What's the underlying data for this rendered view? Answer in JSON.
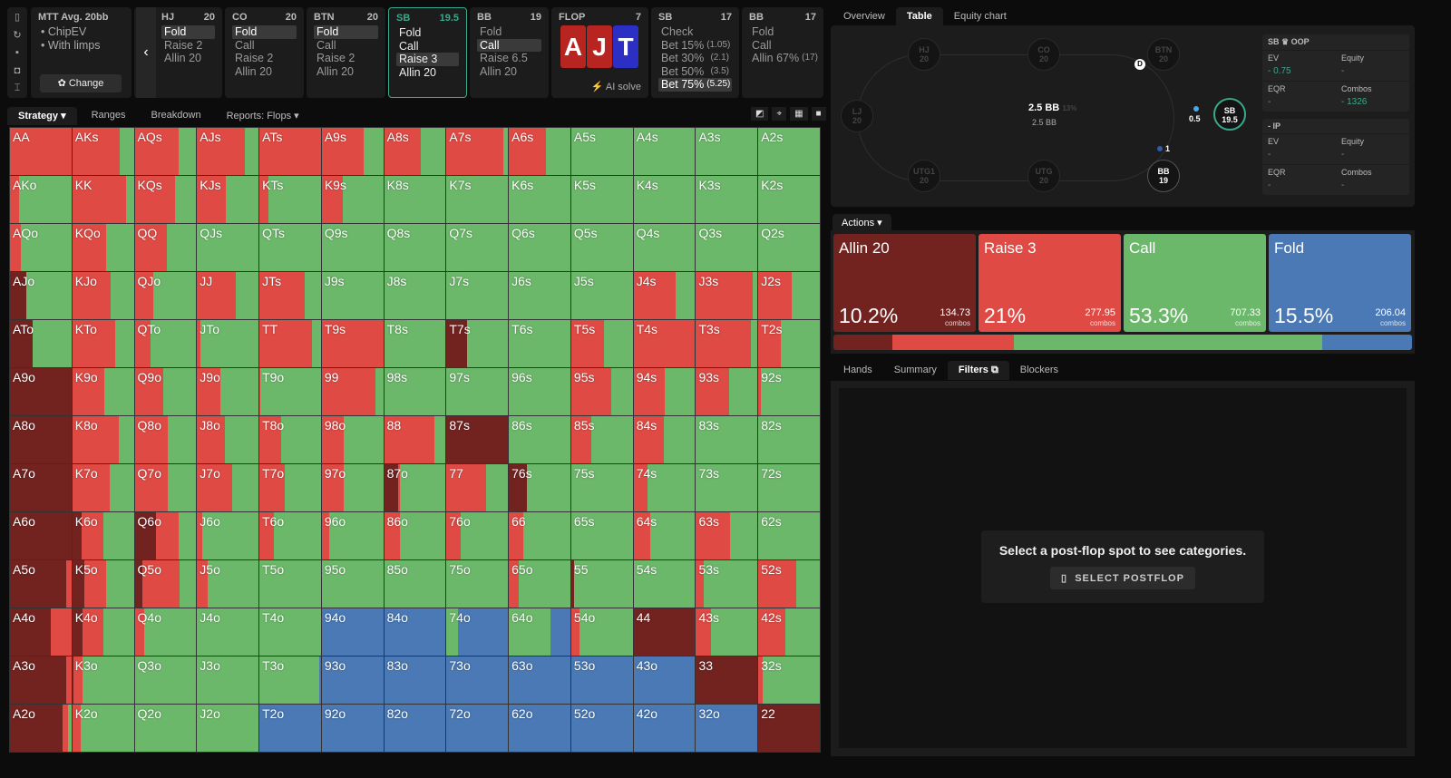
{
  "colors": {
    "allin": "#722320",
    "raise": "#e04a44",
    "call": "#6cb86a",
    "fold": "#4a79b5",
    "accent": "#3aa88a"
  },
  "sidebar_icons": [
    "bookmark-icon",
    "reset-icon",
    "save-icon",
    "gamepad-icon",
    "expand-icon"
  ],
  "game": {
    "title": "MTT  Avg. 20bb",
    "opts": [
      "• ChipEV",
      "• With limps"
    ],
    "change": "Change"
  },
  "positions": [
    {
      "name": "HJ",
      "stack": "20",
      "options": [
        "Fold",
        "Raise 2",
        "Allin 20"
      ],
      "selected": 0
    },
    {
      "name": "CO",
      "stack": "20",
      "options": [
        "Fold",
        "Call",
        "Raise 2",
        "Allin 20"
      ],
      "selected": 0
    },
    {
      "name": "BTN",
      "stack": "20",
      "options": [
        "Fold",
        "Call",
        "Raise 2",
        "Allin 20"
      ],
      "selected": 0
    },
    {
      "name": "SB",
      "stack": "19.5",
      "options": [
        "Fold",
        "Call",
        "Raise 3",
        "Allin 20"
      ],
      "selected": 2
    },
    {
      "name": "BB",
      "stack": "19",
      "options": [
        "Fold",
        "Call",
        "Raise 6.5",
        "Allin 20"
      ],
      "selected": 1
    }
  ],
  "flop": {
    "label": "FLOP",
    "count": "7",
    "cards": [
      "A",
      "J",
      "T"
    ],
    "ai": "AI solve"
  },
  "sb_flop": {
    "name": "SB",
    "stack": "17",
    "options": [
      [
        "Check",
        ""
      ],
      [
        "Bet 15%",
        "(1.05)"
      ],
      [
        "Bet 30%",
        "(2.1)"
      ],
      [
        "Bet 50%",
        "(3.5)"
      ],
      [
        "Bet 75%",
        "(5.25)"
      ]
    ]
  },
  "bb_flop": {
    "name": "BB",
    "stack": "17",
    "options": [
      [
        "Fold",
        ""
      ],
      [
        "Call",
        ""
      ],
      [
        "Allin 67%",
        "(17)"
      ]
    ]
  },
  "tabs": [
    "Strategy",
    "Ranges",
    "Breakdown",
    "Reports: Flops"
  ],
  "right_tabs": [
    "Overview",
    "Table",
    "Equity chart"
  ],
  "table": {
    "seats": [
      {
        "n": "HJ",
        "s": "20"
      },
      {
        "n": "CO",
        "s": "20"
      },
      {
        "n": "BTN",
        "s": "20"
      },
      {
        "n": "LJ",
        "s": "20"
      },
      {
        "n": "SB",
        "s": "19.5"
      },
      {
        "n": "UTG1",
        "s": "20"
      },
      {
        "n": "UTG",
        "s": "20"
      },
      {
        "n": "BB",
        "s": "19"
      }
    ],
    "pot": "2.5 BB",
    "pot_pct": "13%",
    "pot_sub": "2.5 BB",
    "sb_bet": "0.5",
    "bb_bet": "1",
    "dealer": "D",
    "oop": {
      "title": "SB ♛ OOP",
      "ev_label": "EV",
      "ev": "- 0.75",
      "eq_label": "Equity",
      "eq": "-",
      "eqr_label": "EQR",
      "eqr": "-",
      "combos_label": "Combos",
      "combos": "- 1326"
    },
    "ip": {
      "title": "- IP",
      "ev_label": "EV",
      "ev": "-",
      "eq_label": "Equity",
      "eq": "-",
      "eqr_label": "EQR",
      "eqr": "-",
      "combos_label": "Combos",
      "combos": "-"
    }
  },
  "actions_label": "Actions",
  "actions": [
    {
      "name": "Allin 20",
      "pct": "10.2%",
      "combos": "134.73",
      "unit": "combos",
      "share": 10.2
    },
    {
      "name": "Raise 3",
      "pct": "21%",
      "combos": "277.95",
      "unit": "combos",
      "share": 21
    },
    {
      "name": "Call",
      "pct": "53.3%",
      "combos": "707.33",
      "unit": "combos",
      "share": 53.3
    },
    {
      "name": "Fold",
      "pct": "15.5%",
      "combos": "206.04",
      "unit": "combos",
      "share": 15.5
    }
  ],
  "bottom_tabs": [
    "Hands",
    "Summary",
    "Filters",
    "Blockers"
  ],
  "filters": {
    "message": "Select a post-flop spot to see categories.",
    "button": "SELECT POSTFLOP"
  },
  "grid": [
    [
      [
        "AA",
        0,
        100,
        0,
        0
      ],
      [
        "AKs",
        0,
        77,
        23,
        0
      ],
      [
        "AQs",
        0,
        72,
        28,
        0
      ],
      [
        "AJs",
        0,
        78,
        22,
        0
      ],
      [
        "ATs",
        0,
        100,
        0,
        0
      ],
      [
        "A9s",
        0,
        68,
        32,
        0
      ],
      [
        "A8s",
        0,
        60,
        40,
        0
      ],
      [
        "A7s",
        0,
        92,
        8,
        0
      ],
      [
        "A6s",
        0,
        60,
        40,
        0
      ],
      [
        "A5s",
        0,
        0,
        100,
        0
      ],
      [
        "A4s",
        0,
        0,
        100,
        0
      ],
      [
        "A3s",
        0,
        0,
        100,
        0
      ],
      [
        "A2s",
        0,
        0,
        100,
        0
      ]
    ],
    [
      [
        "AKo",
        0,
        15,
        85,
        0
      ],
      [
        "KK",
        0,
        88,
        12,
        0
      ],
      [
        "KQs",
        0,
        66,
        34,
        0
      ],
      [
        "KJs",
        0,
        47,
        53,
        0
      ],
      [
        "KTs",
        0,
        15,
        85,
        0
      ],
      [
        "K9s",
        0,
        34,
        66,
        0
      ],
      [
        "K8s",
        0,
        0,
        100,
        0
      ],
      [
        "K7s",
        0,
        0,
        100,
        0
      ],
      [
        "K6s",
        0,
        0,
        100,
        0
      ],
      [
        "K5s",
        0,
        0,
        100,
        0
      ],
      [
        "K4s",
        0,
        0,
        100,
        0
      ],
      [
        "K3s",
        0,
        0,
        100,
        0
      ],
      [
        "K2s",
        0,
        0,
        100,
        0
      ]
    ],
    [
      [
        "AQo",
        0,
        17,
        83,
        0
      ],
      [
        "KQo",
        0,
        55,
        45,
        0
      ],
      [
        "QQ",
        0,
        53,
        47,
        0
      ],
      [
        "QJs",
        0,
        0,
        100,
        0
      ],
      [
        "QTs",
        0,
        0,
        100,
        0
      ],
      [
        "Q9s",
        0,
        0,
        100,
        0
      ],
      [
        "Q8s",
        0,
        0,
        100,
        0
      ],
      [
        "Q7s",
        0,
        0,
        100,
        0
      ],
      [
        "Q6s",
        0,
        0,
        100,
        0
      ],
      [
        "Q5s",
        0,
        0,
        100,
        0
      ],
      [
        "Q4s",
        0,
        0,
        100,
        0
      ],
      [
        "Q3s",
        0,
        0,
        100,
        0
      ],
      [
        "Q2s",
        0,
        0,
        100,
        0
      ]
    ],
    [
      [
        "AJo",
        27,
        0,
        73,
        0
      ],
      [
        "KJo",
        0,
        63,
        37,
        0
      ],
      [
        "QJo",
        0,
        30,
        70,
        0
      ],
      [
        "JJ",
        0,
        63,
        37,
        0
      ],
      [
        "JTs",
        0,
        74,
        26,
        0
      ],
      [
        "J9s",
        0,
        0,
        100,
        0
      ],
      [
        "J8s",
        0,
        0,
        100,
        0
      ],
      [
        "J7s",
        0,
        0,
        100,
        0
      ],
      [
        "J6s",
        0,
        0,
        100,
        0
      ],
      [
        "J5s",
        0,
        0,
        100,
        0
      ],
      [
        "J4s",
        0,
        68,
        32,
        0
      ],
      [
        "J3s",
        0,
        92,
        8,
        0
      ],
      [
        "J2s",
        0,
        55,
        45,
        0
      ]
    ],
    [
      [
        "ATo",
        37,
        0,
        63,
        0
      ],
      [
        "KTo",
        0,
        69,
        31,
        0
      ],
      [
        "QTo",
        0,
        26,
        74,
        0
      ],
      [
        "JTo",
        0,
        6,
        94,
        0
      ],
      [
        "TT",
        0,
        85,
        15,
        0
      ],
      [
        "T9s",
        0,
        100,
        0,
        0
      ],
      [
        "T8s",
        0,
        0,
        100,
        0
      ],
      [
        "T7s",
        33,
        0,
        67,
        0
      ],
      [
        "T6s",
        0,
        0,
        100,
        0
      ],
      [
        "T5s",
        0,
        53,
        47,
        0
      ],
      [
        "T4s",
        0,
        100,
        0,
        0
      ],
      [
        "T3s",
        0,
        90,
        10,
        0
      ],
      [
        "T2s",
        0,
        37,
        63,
        0
      ]
    ],
    [
      [
        "A9o",
        100,
        0,
        0,
        0
      ],
      [
        "K9o",
        0,
        52,
        48,
        0
      ],
      [
        "Q9o",
        0,
        47,
        53,
        0
      ],
      [
        "J9o",
        0,
        38,
        62,
        0
      ],
      [
        "T9o",
        0,
        2,
        98,
        0
      ],
      [
        "99",
        0,
        88,
        12,
        0
      ],
      [
        "98s",
        0,
        0,
        100,
        0
      ],
      [
        "97s",
        0,
        0,
        100,
        0
      ],
      [
        "96s",
        0,
        0,
        100,
        0
      ],
      [
        "95s",
        0,
        65,
        35,
        0
      ],
      [
        "94s",
        0,
        51,
        49,
        0
      ],
      [
        "93s",
        0,
        54,
        46,
        0
      ],
      [
        "92s",
        0,
        4,
        96,
        0
      ]
    ],
    [
      [
        "A8o",
        100,
        0,
        0,
        0
      ],
      [
        "K8o",
        0,
        76,
        24,
        0
      ],
      [
        "Q8o",
        0,
        54,
        46,
        0
      ],
      [
        "J8o",
        0,
        45,
        55,
        0
      ],
      [
        "T8o",
        0,
        35,
        65,
        0
      ],
      [
        "98o",
        0,
        36,
        64,
        0
      ],
      [
        "88",
        0,
        82,
        18,
        0
      ],
      [
        "87s",
        100,
        0,
        0,
        0
      ],
      [
        "86s",
        0,
        0,
        100,
        0
      ],
      [
        "85s",
        0,
        32,
        68,
        0
      ],
      [
        "84s",
        0,
        49,
        51,
        0
      ],
      [
        "83s",
        0,
        0,
        100,
        0
      ],
      [
        "82s",
        0,
        0,
        100,
        0
      ]
    ],
    [
      [
        "A7o",
        100,
        0,
        0,
        0
      ],
      [
        "K7o",
        0,
        61,
        39,
        0
      ],
      [
        "Q7o",
        0,
        54,
        46,
        0
      ],
      [
        "J7o",
        0,
        57,
        43,
        0
      ],
      [
        "T7o",
        0,
        41,
        59,
        0
      ],
      [
        "97o",
        0,
        35,
        65,
        0
      ],
      [
        "87o",
        23,
        3,
        74,
        0
      ],
      [
        "77",
        0,
        64,
        36,
        0
      ],
      [
        "76s",
        30,
        0,
        70,
        0
      ],
      [
        "75s",
        0,
        0,
        100,
        0
      ],
      [
        "74s",
        0,
        23,
        77,
        0
      ],
      [
        "73s",
        0,
        0,
        100,
        0
      ],
      [
        "72s",
        0,
        0,
        100,
        0
      ]
    ],
    [
      [
        "A6o",
        100,
        0,
        0,
        0
      ],
      [
        "K6o",
        15,
        35,
        50,
        0
      ],
      [
        "Q6o",
        35,
        37,
        28,
        0
      ],
      [
        "J6o",
        0,
        8,
        92,
        0
      ],
      [
        "T6o",
        0,
        24,
        76,
        0
      ],
      [
        "96o",
        0,
        12,
        88,
        0
      ],
      [
        "86o",
        0,
        26,
        74,
        0
      ],
      [
        "76o",
        0,
        23,
        77,
        0
      ],
      [
        "66",
        0,
        23,
        77,
        0
      ],
      [
        "65s",
        0,
        0,
        100,
        0
      ],
      [
        "64s",
        0,
        27,
        73,
        0
      ],
      [
        "63s",
        0,
        55,
        45,
        0
      ],
      [
        "62s",
        0,
        0,
        100,
        0
      ]
    ],
    [
      [
        "A5o",
        92,
        8,
        0,
        0
      ],
      [
        "K5o",
        20,
        35,
        45,
        0
      ],
      [
        "Q5o",
        13,
        60,
        27,
        0
      ],
      [
        "J5o",
        0,
        17,
        83,
        0
      ],
      [
        "T5o",
        0,
        0,
        100,
        0
      ],
      [
        "95o",
        0,
        0,
        100,
        0
      ],
      [
        "85o",
        0,
        0,
        100,
        0
      ],
      [
        "75o",
        0,
        0,
        100,
        0
      ],
      [
        "65o",
        0,
        16,
        84,
        0
      ],
      [
        "55",
        4,
        0,
        96,
        0
      ],
      [
        "54s",
        0,
        0,
        100,
        0
      ],
      [
        "53s",
        0,
        12,
        88,
        0
      ],
      [
        "52s",
        0,
        61,
        39,
        0
      ]
    ],
    [
      [
        "A4o",
        66,
        34,
        0,
        0
      ],
      [
        "K4o",
        17,
        33,
        50,
        0
      ],
      [
        "Q4o",
        0,
        16,
        84,
        0
      ],
      [
        "J4o",
        0,
        0,
        100,
        0
      ],
      [
        "T4o",
        0,
        0,
        100,
        0
      ],
      [
        "94o",
        0,
        0,
        0,
        100
      ],
      [
        "84o",
        0,
        0,
        0,
        100
      ],
      [
        "74o",
        0,
        0,
        19,
        81
      ],
      [
        "64o",
        0,
        0,
        68,
        32
      ],
      [
        "54o",
        0,
        13,
        87,
        0
      ],
      [
        "44",
        100,
        0,
        0,
        0
      ],
      [
        "43s",
        0,
        25,
        75,
        0
      ],
      [
        "42s",
        0,
        44,
        56,
        0
      ]
    ],
    [
      [
        "A3o",
        91,
        9,
        0,
        0
      ],
      [
        "K3o",
        2,
        14,
        84,
        0
      ],
      [
        "Q3o",
        0,
        0,
        100,
        0
      ],
      [
        "J3o",
        0,
        0,
        100,
        0
      ],
      [
        "T3o",
        0,
        0,
        97,
        3
      ],
      [
        "93o",
        0,
        0,
        0,
        100
      ],
      [
        "83o",
        0,
        0,
        0,
        100
      ],
      [
        "73o",
        0,
        0,
        0,
        100
      ],
      [
        "63o",
        0,
        0,
        0,
        100
      ],
      [
        "53o",
        0,
        0,
        0,
        100
      ],
      [
        "43o",
        0,
        0,
        0,
        100
      ],
      [
        "33",
        100,
        0,
        0,
        0
      ],
      [
        "32s",
        0,
        7,
        93,
        0
      ]
    ],
    [
      [
        "A2o",
        86,
        9,
        5,
        0
      ],
      [
        "K2o",
        0,
        13,
        87,
        0
      ],
      [
        "Q2o",
        0,
        0,
        100,
        0
      ],
      [
        "J2o",
        0,
        0,
        100,
        0
      ],
      [
        "T2o",
        0,
        0,
        0,
        100
      ],
      [
        "92o",
        0,
        0,
        0,
        100
      ],
      [
        "82o",
        0,
        0,
        0,
        100
      ],
      [
        "72o",
        0,
        0,
        0,
        100
      ],
      [
        "62o",
        0,
        0,
        0,
        100
      ],
      [
        "52o",
        0,
        0,
        0,
        100
      ],
      [
        "42o",
        0,
        0,
        0,
        100
      ],
      [
        "32o",
        0,
        0,
        0,
        100
      ],
      [
        "22",
        100,
        0,
        0,
        0
      ]
    ]
  ]
}
